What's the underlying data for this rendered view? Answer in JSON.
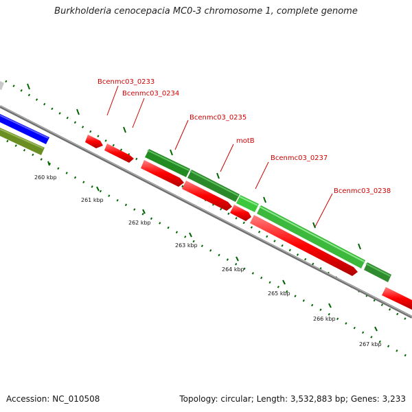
{
  "title": "Burkholderia cenocepacia MC0-3 chromosome 1, complete genome",
  "accession_label": "Accession: NC_010508",
  "summary_label": "Topology: circular; Length: 3,532,883 bp; Genes: 3,233",
  "ruler": {
    "ticks": [
      "260 kbp",
      "261 kbp",
      "262 kbp",
      "263 kbp",
      "264 kbp",
      "265 kbp",
      "266 kbp",
      "267 kbp"
    ]
  },
  "gene_labels": [
    "Bcenmc03_0233",
    "Bcenmc03_0234",
    "Bcenmc03_0235",
    "motB",
    "Bcenmc03_0237",
    "Bcenmc03_0238"
  ],
  "colors": {
    "cds": "#ff0000",
    "gene_dark": "#228b22",
    "gene_light": "#3cc83c",
    "blue": "#0000ff",
    "olive": "#6b8e23",
    "backbone": "#808080",
    "label": "#cc0000",
    "tick": "#006400"
  }
}
